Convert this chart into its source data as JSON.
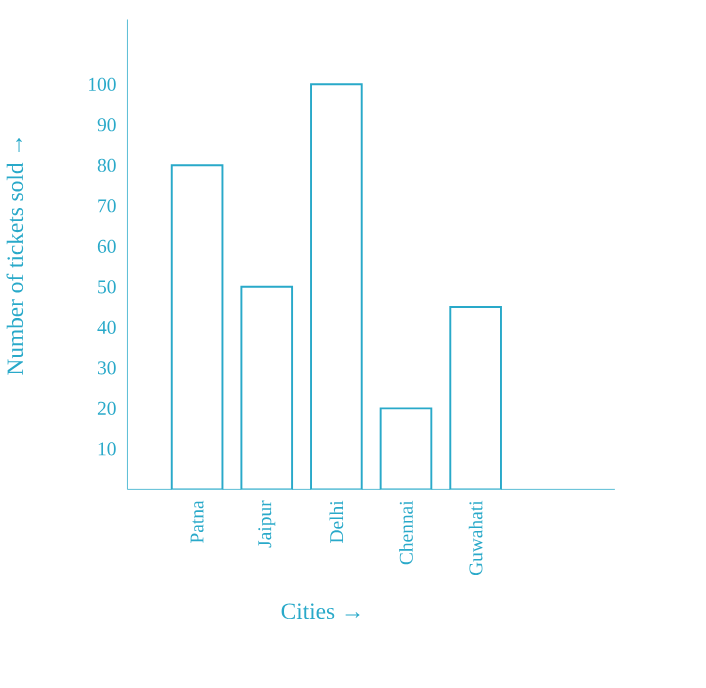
{
  "chart_data": {
    "type": "bar",
    "xlabel": "Cities →",
    "ylabel": "Number of tickets sold →",
    "categories": [
      "Patna",
      "Jaipur",
      "Delhi",
      "Chennai",
      "Guwahati"
    ],
    "values": [
      80,
      50,
      100,
      20,
      45
    ],
    "color": "#29a9c9",
    "ylim": [
      0,
      116
    ],
    "yticks": [
      10,
      20,
      30,
      40,
      50,
      60,
      70,
      80,
      90,
      100
    ],
    "grid": false
  }
}
